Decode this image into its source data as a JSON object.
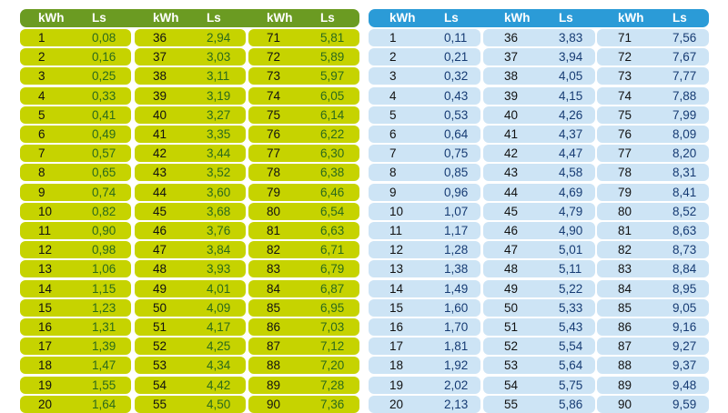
{
  "tables": [
    {
      "headers": [
        "kWh",
        "Ls",
        "kWh",
        "Ls",
        "kWh",
        "Ls"
      ],
      "rows": [
        [
          "1",
          "0,08",
          "36",
          "2,94",
          "71",
          "5,81"
        ],
        [
          "2",
          "0,16",
          "37",
          "3,03",
          "72",
          "5,89"
        ],
        [
          "3",
          "0,25",
          "38",
          "3,11",
          "73",
          "5,97"
        ],
        [
          "4",
          "0,33",
          "39",
          "3,19",
          "74",
          "6,05"
        ],
        [
          "5",
          "0,41",
          "40",
          "3,27",
          "75",
          "6,14"
        ],
        [
          "6",
          "0,49",
          "41",
          "3,35",
          "76",
          "6,22"
        ],
        [
          "7",
          "0,57",
          "42",
          "3,44",
          "77",
          "6,30"
        ],
        [
          "8",
          "0,65",
          "43",
          "3,52",
          "78",
          "6,38"
        ],
        [
          "9",
          "0,74",
          "44",
          "3,60",
          "79",
          "6,46"
        ],
        [
          "10",
          "0,82",
          "45",
          "3,68",
          "80",
          "6,54"
        ],
        [
          "11",
          "0,90",
          "46",
          "3,76",
          "81",
          "6,63"
        ],
        [
          "12",
          "0,98",
          "47",
          "3,84",
          "82",
          "6,71"
        ],
        [
          "13",
          "1,06",
          "48",
          "3,93",
          "83",
          "6,79"
        ],
        [
          "14",
          "1,15",
          "49",
          "4,01",
          "84",
          "6,87"
        ],
        [
          "15",
          "1,23",
          "50",
          "4,09",
          "85",
          "6,95"
        ],
        [
          "16",
          "1,31",
          "51",
          "4,17",
          "86",
          "7,03"
        ],
        [
          "17",
          "1,39",
          "52",
          "4,25",
          "87",
          "7,12"
        ],
        [
          "18",
          "1,47",
          "53",
          "4,34",
          "88",
          "7,20"
        ],
        [
          "19",
          "1,55",
          "54",
          "4,42",
          "89",
          "7,28"
        ],
        [
          "20",
          "1,64",
          "55",
          "4,50",
          "90",
          "7,36"
        ]
      ]
    },
    {
      "headers": [
        "kWh",
        "Ls",
        "kWh",
        "Ls",
        "kWh",
        "Ls"
      ],
      "rows": [
        [
          "1",
          "0,11",
          "36",
          "3,83",
          "71",
          "7,56"
        ],
        [
          "2",
          "0,21",
          "37",
          "3,94",
          "72",
          "7,67"
        ],
        [
          "3",
          "0,32",
          "38",
          "4,05",
          "73",
          "7,77"
        ],
        [
          "4",
          "0,43",
          "39",
          "4,15",
          "74",
          "7,88"
        ],
        [
          "5",
          "0,53",
          "40",
          "4,26",
          "75",
          "7,99"
        ],
        [
          "6",
          "0,64",
          "41",
          "4,37",
          "76",
          "8,09"
        ],
        [
          "7",
          "0,75",
          "42",
          "4,47",
          "77",
          "8,20"
        ],
        [
          "8",
          "0,85",
          "43",
          "4,58",
          "78",
          "8,31"
        ],
        [
          "9",
          "0,96",
          "44",
          "4,69",
          "79",
          "8,41"
        ],
        [
          "10",
          "1,07",
          "45",
          "4,79",
          "80",
          "8,52"
        ],
        [
          "11",
          "1,17",
          "46",
          "4,90",
          "81",
          "8,63"
        ],
        [
          "12",
          "1,28",
          "47",
          "5,01",
          "82",
          "8,73"
        ],
        [
          "13",
          "1,38",
          "48",
          "5,11",
          "83",
          "8,84"
        ],
        [
          "14",
          "1,49",
          "49",
          "5,22",
          "84",
          "8,95"
        ],
        [
          "15",
          "1,60",
          "50",
          "5,33",
          "85",
          "9,05"
        ],
        [
          "16",
          "1,70",
          "51",
          "5,43",
          "86",
          "9,16"
        ],
        [
          "17",
          "1,81",
          "52",
          "5,54",
          "87",
          "9,27"
        ],
        [
          "18",
          "1,92",
          "53",
          "5,64",
          "88",
          "9,37"
        ],
        [
          "19",
          "2,02",
          "54",
          "5,75",
          "89",
          "9,48"
        ],
        [
          "20",
          "2,13",
          "55",
          "5,86",
          "90",
          "9,59"
        ]
      ]
    }
  ]
}
